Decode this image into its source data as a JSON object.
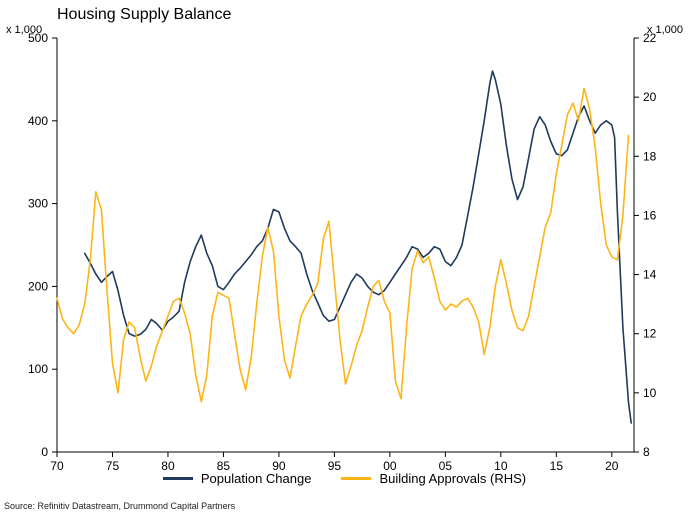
{
  "header": {
    "title": "Housing Supply Balance"
  },
  "axes": {
    "left_unit": "x 1,000",
    "right_unit": "x 1,000"
  },
  "footer": {
    "source": "Source: Refinitiv Datastream, Drummond Capital Partners"
  },
  "chart_data": {
    "type": "line",
    "title": "Housing Supply Balance",
    "grid": false,
    "legend_position": "bottom",
    "x_axis": {
      "range": [
        1970,
        2022
      ],
      "ticks": [
        1970,
        1975,
        1980,
        1985,
        1990,
        1995,
        2000,
        2005,
        2010,
        2015,
        2020
      ],
      "tick_labels": [
        "70",
        "75",
        "80",
        "85",
        "90",
        "95",
        "00",
        "05",
        "10",
        "15",
        "20"
      ]
    },
    "left_axis": {
      "unit": "x 1,000",
      "range": [
        0,
        500
      ],
      "ticks": [
        0,
        100,
        200,
        300,
        400,
        500
      ]
    },
    "right_axis": {
      "unit": "x 1,000",
      "range": [
        8,
        22
      ],
      "ticks": [
        8,
        10,
        12,
        14,
        16,
        18,
        20,
        22
      ]
    },
    "series": [
      {
        "name": "Population Change",
        "axis": "left",
        "color": "#1f3a5c",
        "x": [
          1972.5,
          1973,
          1973.5,
          1974,
          1974.5,
          1975,
          1975.5,
          1976,
          1976.5,
          1977,
          1977.5,
          1978,
          1978.5,
          1979,
          1979.5,
          1980,
          1980.5,
          1981,
          1981.5,
          1982,
          1982.5,
          1983,
          1983.5,
          1984,
          1984.5,
          1985,
          1985.5,
          1986,
          1986.5,
          1987,
          1987.5,
          1988,
          1988.5,
          1989,
          1989.5,
          1990,
          1990.5,
          1991,
          1991.5,
          1992,
          1992.5,
          1993,
          1993.5,
          1994,
          1994.5,
          1995,
          1995.5,
          1996,
          1996.5,
          1997,
          1997.5,
          1998,
          1998.5,
          1999,
          1999.5,
          2000,
          2000.5,
          2001,
          2001.5,
          2002,
          2002.5,
          2003,
          2003.5,
          2004,
          2004.5,
          2005,
          2005.5,
          2006,
          2006.5,
          2007,
          2007.5,
          2008,
          2008.5,
          2009,
          2009.25,
          2009.5,
          2010,
          2010.5,
          2011,
          2011.5,
          2012,
          2012.5,
          2013,
          2013.5,
          2014,
          2014.5,
          2015,
          2015.5,
          2016,
          2016.5,
          2017,
          2017.5,
          2018,
          2018.5,
          2019,
          2019.5,
          2020,
          2020.25,
          2020.5,
          2021,
          2021.5,
          2021.75
        ],
        "values": [
          240,
          228,
          215,
          205,
          212,
          218,
          195,
          165,
          143,
          140,
          142,
          148,
          160,
          155,
          147,
          158,
          163,
          170,
          205,
          230,
          248,
          262,
          240,
          225,
          200,
          196,
          205,
          215,
          222,
          230,
          238,
          248,
          255,
          270,
          293,
          290,
          270,
          255,
          248,
          240,
          215,
          195,
          180,
          165,
          158,
          160,
          175,
          190,
          205,
          215,
          210,
          200,
          193,
          190,
          195,
          205,
          215,
          225,
          235,
          248,
          245,
          235,
          240,
          248,
          245,
          230,
          225,
          235,
          250,
          285,
          320,
          360,
          400,
          445,
          460,
          450,
          420,
          370,
          330,
          305,
          320,
          355,
          390,
          405,
          395,
          375,
          360,
          358,
          365,
          385,
          405,
          418,
          400,
          385,
          395,
          400,
          395,
          380,
          290,
          150,
          60,
          35
        ]
      },
      {
        "name": "Building Approvals (RHS)",
        "axis": "right",
        "color": "#fdb515",
        "x": [
          1970,
          1970.5,
          1971,
          1971.5,
          1972,
          1972.5,
          1973,
          1973.5,
          1974,
          1974.5,
          1975,
          1975.5,
          1976,
          1976.5,
          1977,
          1977.5,
          1978,
          1978.5,
          1979,
          1979.5,
          1980,
          1980.5,
          1981,
          1981.5,
          1982,
          1982.5,
          1983,
          1983.5,
          1984,
          1984.5,
          1985,
          1985.5,
          1986,
          1986.5,
          1987,
          1987.5,
          1988,
          1988.5,
          1989,
          1989.5,
          1990,
          1990.5,
          1991,
          1991.5,
          1992,
          1992.5,
          1993,
          1993.5,
          1994,
          1994.5,
          1995,
          1995.5,
          1996,
          1996.5,
          1997,
          1997.5,
          1998,
          1998.5,
          1999,
          1999.5,
          2000,
          2000.5,
          2001,
          2001.5,
          2002,
          2002.5,
          2003,
          2003.5,
          2004,
          2004.5,
          2005,
          2005.5,
          2006,
          2006.5,
          2007,
          2007.5,
          2008,
          2008.5,
          2009,
          2009.5,
          2010,
          2010.5,
          2011,
          2011.5,
          2012,
          2012.5,
          2013,
          2013.5,
          2014,
          2014.5,
          2015,
          2015.5,
          2016,
          2016.5,
          2017,
          2017.5,
          2018,
          2018.5,
          2019,
          2019.5,
          2020,
          2020.5,
          2021,
          2021.5
        ],
        "values": [
          13.2,
          12.5,
          12.2,
          12.0,
          12.3,
          13.0,
          14.5,
          16.8,
          16.2,
          13.5,
          11.0,
          10.0,
          11.8,
          12.4,
          12.2,
          11.2,
          10.4,
          10.9,
          11.6,
          12.1,
          12.6,
          13.1,
          13.2,
          12.7,
          12.0,
          10.6,
          9.7,
          10.6,
          12.6,
          13.4,
          13.3,
          13.2,
          12.0,
          10.8,
          10.1,
          11.2,
          13.0,
          14.6,
          15.6,
          14.8,
          12.6,
          11.1,
          10.5,
          11.6,
          12.6,
          13.0,
          13.3,
          13.7,
          15.2,
          15.8,
          13.8,
          11.8,
          10.3,
          10.9,
          11.6,
          12.1,
          12.9,
          13.6,
          13.8,
          13.1,
          12.7,
          10.4,
          9.8,
          12.2,
          14.2,
          14.8,
          14.4,
          14.6,
          13.9,
          13.1,
          12.8,
          13.0,
          12.9,
          13.1,
          13.2,
          12.9,
          12.4,
          11.3,
          12.2,
          13.6,
          14.5,
          13.7,
          12.8,
          12.2,
          12.1,
          12.6,
          13.6,
          14.6,
          15.6,
          16.1,
          17.4,
          18.4,
          19.4,
          19.8,
          19.2,
          20.3,
          19.6,
          18.3,
          16.4,
          15.0,
          14.6,
          14.5,
          16.0,
          18.7
        ]
      }
    ]
  }
}
